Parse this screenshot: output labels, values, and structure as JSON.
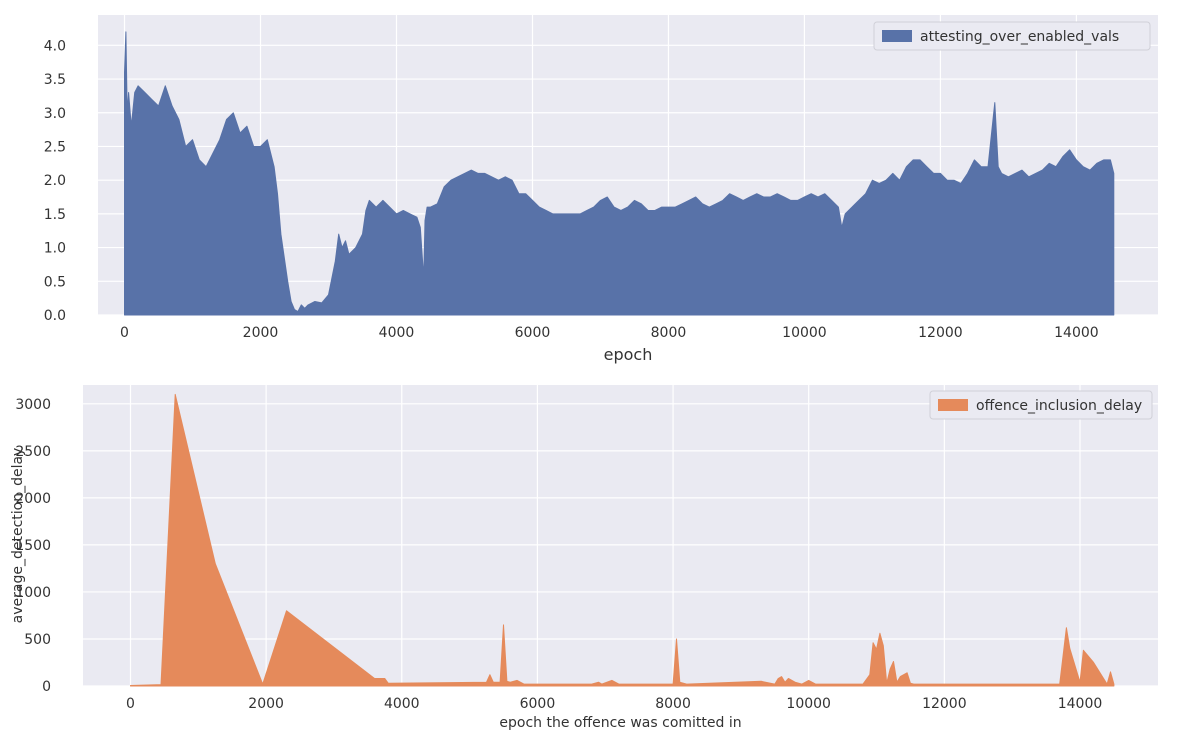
{
  "chart_data": [
    {
      "type": "area",
      "color": "#5872a8",
      "xlabel": "epoch",
      "ylabel": "",
      "xlim": [
        -390,
        15200
      ],
      "ylim": [
        0,
        4.45
      ],
      "xticks": [
        "0",
        "2000",
        "4000",
        "6000",
        "8000",
        "10000",
        "12000",
        "14000"
      ],
      "yticks": [
        "0.0",
        "0.5",
        "1.0",
        "1.5",
        "2.0",
        "2.5",
        "3.0",
        "3.5",
        "4.0"
      ],
      "legend_position": "top-right",
      "grid": true,
      "series": [
        {
          "name": "attesting_over_enabled_vals",
          "x": [
            0,
            20,
            40,
            60,
            100,
            150,
            200,
            300,
            400,
            500,
            600,
            700,
            800,
            900,
            1000,
            1100,
            1200,
            1300,
            1400,
            1500,
            1600,
            1700,
            1800,
            1900,
            2000,
            2100,
            2200,
            2250,
            2300,
            2400,
            2450,
            2500,
            2550,
            2600,
            2650,
            2700,
            2800,
            2900,
            3000,
            3100,
            3150,
            3200,
            3250,
            3300,
            3400,
            3500,
            3550,
            3600,
            3700,
            3800,
            3900,
            4000,
            4100,
            4200,
            4300,
            4350,
            4400,
            4420,
            4450,
            4500,
            4600,
            4700,
            4800,
            4900,
            5000,
            5100,
            5200,
            5300,
            5400,
            5500,
            5600,
            5700,
            5800,
            5900,
            6000,
            6100,
            6200,
            6300,
            6400,
            6500,
            6600,
            6700,
            6800,
            6900,
            7000,
            7100,
            7200,
            7300,
            7400,
            7500,
            7600,
            7700,
            7800,
            7900,
            8000,
            8100,
            8200,
            8300,
            8400,
            8500,
            8600,
            8700,
            8800,
            8900,
            9000,
            9100,
            9200,
            9300,
            9400,
            9500,
            9600,
            9700,
            9800,
            9900,
            10000,
            10100,
            10200,
            10300,
            10400,
            10500,
            10550,
            10600,
            10700,
            10800,
            10900,
            11000,
            11100,
            11200,
            11300,
            11400,
            11500,
            11600,
            11700,
            11800,
            11900,
            12000,
            12100,
            12200,
            12300,
            12400,
            12500,
            12600,
            12700,
            12800,
            12850,
            12900,
            13000,
            13100,
            13200,
            13300,
            13400,
            13500,
            13600,
            13700,
            13800,
            13900,
            14000,
            14100,
            14200,
            14300,
            14400,
            14500,
            14550
          ],
          "y": [
            3.6,
            4.2,
            3.0,
            3.3,
            2.8,
            3.3,
            3.4,
            3.3,
            3.2,
            3.1,
            3.4,
            3.1,
            2.9,
            2.5,
            2.6,
            2.3,
            2.2,
            2.4,
            2.6,
            2.9,
            3.0,
            2.7,
            2.8,
            2.5,
            2.5,
            2.6,
            2.2,
            1.8,
            1.2,
            0.5,
            0.2,
            0.08,
            0.05,
            0.15,
            0.1,
            0.15,
            0.2,
            0.18,
            0.3,
            0.8,
            1.2,
            1.0,
            1.1,
            0.9,
            1.0,
            1.2,
            1.55,
            1.7,
            1.6,
            1.7,
            1.6,
            1.5,
            1.55,
            1.5,
            1.45,
            1.3,
            0.55,
            1.4,
            1.6,
            1.6,
            1.65,
            1.9,
            2.0,
            2.05,
            2.1,
            2.15,
            2.1,
            2.1,
            2.05,
            2.0,
            2.05,
            2.0,
            1.8,
            1.8,
            1.7,
            1.6,
            1.55,
            1.5,
            1.5,
            1.5,
            1.5,
            1.5,
            1.55,
            1.6,
            1.7,
            1.75,
            1.6,
            1.55,
            1.6,
            1.7,
            1.65,
            1.55,
            1.55,
            1.6,
            1.6,
            1.6,
            1.65,
            1.7,
            1.75,
            1.65,
            1.6,
            1.65,
            1.7,
            1.8,
            1.75,
            1.7,
            1.75,
            1.8,
            1.75,
            1.75,
            1.8,
            1.75,
            1.7,
            1.7,
            1.75,
            1.8,
            1.75,
            1.8,
            1.7,
            1.6,
            1.3,
            1.5,
            1.6,
            1.7,
            1.8,
            2.0,
            1.95,
            2.0,
            2.1,
            2.0,
            2.2,
            2.3,
            2.3,
            2.2,
            2.1,
            2.1,
            2.0,
            2.0,
            1.95,
            2.1,
            2.3,
            2.2,
            2.2,
            3.15,
            2.2,
            2.1,
            2.05,
            2.1,
            2.15,
            2.05,
            2.1,
            2.15,
            2.25,
            2.2,
            2.35,
            2.45,
            2.3,
            2.2,
            2.15,
            2.25,
            2.3,
            2.3,
            2.1
          ]
        }
      ]
    },
    {
      "type": "area",
      "color": "#e58a5b",
      "xlabel": "epoch the offence was comitted in",
      "ylabel": "average_detection_delay",
      "xlim": [
        -700,
        15150
      ],
      "ylim": [
        0,
        3200
      ],
      "xticks": [
        "0",
        "2000",
        "4000",
        "6000",
        "8000",
        "10000",
        "12000",
        "14000"
      ],
      "yticks": [
        "0",
        "500",
        "1000",
        "1500",
        "2000",
        "2500",
        "3000"
      ],
      "legend_position": "top-right",
      "grid": true,
      "series": [
        {
          "name": "offence_inclusion_delay",
          "x": [
            0,
            450,
            660,
            1250,
            1950,
            2300,
            3600,
            3750,
            3800,
            5250,
            5300,
            5350,
            5450,
            5500,
            5550,
            5600,
            5700,
            5800,
            5900,
            6800,
            6900,
            6950,
            7100,
            7200,
            8000,
            8050,
            8100,
            8200,
            9300,
            9500,
            9550,
            9600,
            9650,
            9700,
            9800,
            9900,
            10000,
            10100,
            10800,
            10900,
            10950,
            11000,
            11050,
            11100,
            11150,
            11200,
            11250,
            11300,
            11350,
            11450,
            11500,
            11550,
            13700,
            13800,
            13850,
            14000,
            14050,
            14200,
            14400,
            14450,
            14500
          ],
          "y": [
            5,
            15,
            3100,
            1300,
            20,
            800,
            80,
            80,
            30,
            40,
            120,
            40,
            40,
            650,
            50,
            40,
            60,
            20,
            20,
            20,
            40,
            20,
            60,
            20,
            20,
            500,
            40,
            20,
            50,
            20,
            80,
            100,
            40,
            80,
            40,
            20,
            60,
            20,
            20,
            120,
            460,
            390,
            560,
            430,
            30,
            180,
            260,
            40,
            100,
            140,
            30,
            20,
            20,
            620,
            400,
            40,
            380,
            250,
            20,
            150,
            20
          ]
        }
      ]
    }
  ]
}
